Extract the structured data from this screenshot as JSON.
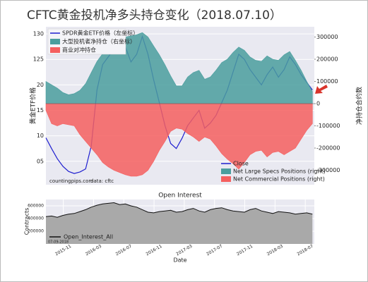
{
  "chart_data": [
    {
      "type": "combo",
      "title": "CFTC黄金投机净多头持仓变化（2018.07.10）",
      "ylabel": "黄金ETF价格",
      "y2label": "净持仓合约数",
      "legend_cn": [
        "SPDR黄金ETF价格（左坐标）",
        "大型投机者净持仓（右坐标）",
        "商业对冲持仓"
      ],
      "annotations": [
        "countingpips.com",
        "data: cftc"
      ],
      "grid": true,
      "legend": "lower right",
      "x": [
        -2.3,
        -1.55,
        -0.8,
        -0.05,
        0.7,
        1.45,
        2.2,
        2.95,
        3.7,
        4.45,
        5.2,
        5.95,
        6.7,
        7.45,
        8.2,
        8.95,
        9.7,
        10.45,
        11.2,
        11.95,
        12.7,
        13.45,
        14.2,
        14.95,
        15.7,
        16.45,
        17.2,
        17.95,
        18.7,
        19.45,
        20.2,
        20.95,
        21.7,
        22.45,
        23.2,
        23.95,
        24.7,
        25.45,
        26.2,
        26.95,
        27.7,
        28.45,
        29.2,
        29.95,
        30.7,
        31.45,
        32.2,
        32.95
      ],
      "xlim": [
        -2.3,
        33.2
      ],
      "ylim": [
        100.4,
        131.4
      ],
      "yticks": [
        {
          "value": 105,
          "label": "05"
        },
        {
          "value": 110,
          "label": "10"
        },
        {
          "value": 115,
          "label": "15"
        },
        {
          "value": 120,
          "label": "20"
        },
        125,
        130
      ],
      "y2lim": [
        -365000,
        346000
      ],
      "y2ticks": [
        -300000,
        -200000,
        -100000,
        0,
        100000,
        200000,
        300000
      ],
      "series": [
        {
          "name": "Close",
          "type": "line",
          "color": "#1f1fd0",
          "values": [
            109.6,
            107.5,
            105.5,
            104,
            103,
            102.6,
            102.9,
            103.5,
            108,
            119,
            124,
            125.5,
            127,
            128,
            127.5,
            124.5,
            126,
            129.5,
            126,
            121,
            116.5,
            112,
            108.5,
            107.5,
            109.5,
            112,
            113.5,
            115,
            111.5,
            112.5,
            114,
            116.5,
            119,
            122.5,
            126,
            125,
            123,
            121.5,
            120,
            122,
            123.5,
            121.5,
            123,
            125.5,
            124,
            122,
            120.5,
            119
          ]
        },
        {
          "name": "Net Large Specs Positions (right)",
          "type": "area",
          "axis": "y2",
          "color": "#4a9e9e",
          "values": [
            100000,
            85000,
            70000,
            50000,
            40000,
            45000,
            60000,
            90000,
            140000,
            190000,
            225000,
            245000,
            265000,
            285000,
            300000,
            305000,
            310000,
            320000,
            300000,
            260000,
            220000,
            175000,
            125000,
            80000,
            80000,
            120000,
            140000,
            150000,
            110000,
            120000,
            150000,
            185000,
            200000,
            230000,
            255000,
            240000,
            210000,
            195000,
            190000,
            215000,
            200000,
            195000,
            220000,
            235000,
            195000,
            150000,
            100000,
            55000
          ]
        },
        {
          "name": "Net Commercial Positions (right)",
          "type": "area",
          "axis": "y2",
          "color": "#f55f5f",
          "values": [
            -30000,
            -90000,
            -100000,
            -90000,
            -95000,
            -100000,
            -140000,
            -170000,
            -200000,
            -230000,
            -265000,
            -285000,
            -300000,
            -310000,
            -320000,
            -327000,
            -327000,
            -320000,
            -300000,
            -260000,
            -210000,
            -170000,
            -125000,
            -110000,
            -115000,
            -135000,
            -150000,
            -170000,
            -150000,
            -160000,
            -190000,
            -225000,
            -250000,
            -270000,
            -295000,
            -265000,
            -230000,
            -215000,
            -210000,
            -240000,
            -220000,
            -215000,
            -230000,
            -215000,
            -200000,
            -160000,
            -120000,
            -90000
          ]
        }
      ]
    },
    {
      "type": "area",
      "title": "Open Interest",
      "ylabel": "Contracts",
      "xlabel": "Date",
      "annotations": [
        "07-09-2018"
      ],
      "grid": true,
      "legend": "lower left",
      "x": [
        -2.3,
        -1.55,
        -0.8,
        -0.05,
        0.7,
        1.45,
        2.2,
        2.95,
        3.7,
        4.45,
        5.2,
        5.95,
        6.7,
        7.45,
        8.2,
        8.95,
        9.7,
        10.45,
        11.2,
        11.95,
        12.7,
        13.45,
        14.2,
        14.95,
        15.7,
        16.45,
        17.2,
        17.95,
        18.7,
        19.45,
        20.2,
        20.95,
        21.7,
        22.45,
        23.2,
        23.95,
        24.7,
        25.45,
        26.2,
        26.95,
        27.7,
        28.45,
        29.2,
        29.95,
        30.7,
        31.45,
        32.2,
        32.95
      ],
      "xlim": [
        -2.3,
        33.2
      ],
      "xticks": [
        {
          "value": 0,
          "label": "2015-11"
        },
        {
          "value": 4,
          "label": "2016-03"
        },
        {
          "value": 8,
          "label": "2016-07"
        },
        {
          "value": 12,
          "label": "2016-11"
        },
        {
          "value": 16,
          "label": "2017-03"
        },
        {
          "value": 20,
          "label": "2017-07"
        },
        {
          "value": 24,
          "label": "2017-11"
        },
        {
          "value": 28,
          "label": "2018-03"
        },
        {
          "value": 32,
          "label": "2018-07"
        }
      ],
      "ylim": [
        0,
        700000
      ],
      "yticks": [
        200000,
        400000,
        600000
      ],
      "series": [
        {
          "name": "Open_Interest_All",
          "color": "#111111",
          "fill": "#a9a9a9",
          "values": [
            430000,
            440000,
            420000,
            450000,
            470000,
            480000,
            510000,
            540000,
            580000,
            610000,
            630000,
            640000,
            650000,
            620000,
            630000,
            600000,
            580000,
            540000,
            500000,
            490000,
            510000,
            520000,
            530000,
            500000,
            510000,
            540000,
            560000,
            520000,
            500000,
            540000,
            560000,
            570000,
            540000,
            520000,
            510000,
            500000,
            540000,
            560000,
            520000,
            500000,
            480000,
            510000,
            500000,
            490000,
            470000,
            480000,
            490000,
            470000
          ]
        }
      ]
    }
  ]
}
